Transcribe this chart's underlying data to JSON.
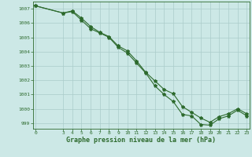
{
  "line1": {
    "x": [
      0,
      3,
      4,
      5,
      6,
      7,
      8,
      9,
      10,
      11,
      12,
      13,
      14,
      15,
      16,
      17,
      18,
      19,
      20,
      21,
      22,
      23
    ],
    "y": [
      1007.2,
      1006.7,
      1006.8,
      1006.2,
      1005.6,
      1005.3,
      1005.0,
      1004.3,
      1003.9,
      1003.2,
      1002.5,
      1001.6,
      1001.0,
      1000.5,
      999.6,
      999.5,
      998.9,
      998.85,
      999.3,
      999.5,
      999.9,
      999.5
    ]
  },
  "line2": {
    "x": [
      0,
      3,
      4,
      5,
      6,
      7,
      8,
      9,
      10,
      11,
      12,
      13,
      14,
      15,
      16,
      17,
      18,
      19,
      20,
      21,
      22,
      23
    ],
    "y": [
      1007.2,
      1006.7,
      1006.85,
      1006.35,
      1005.75,
      1005.35,
      1005.05,
      1004.4,
      1004.05,
      1003.35,
      1002.55,
      1001.95,
      1001.35,
      1001.05,
      1000.15,
      999.75,
      999.35,
      999.05,
      999.45,
      999.65,
      1000.0,
      999.65
    ]
  },
  "line_color": "#2d6a2d",
  "bg_color": "#cce8e6",
  "grid_color": "#aaccca",
  "xlabel": "Graphe pression niveau de la mer (hPa)",
  "ylim": [
    998.6,
    1007.5
  ],
  "xlim": [
    -0.3,
    23.3
  ],
  "yticks": [
    999,
    1000,
    1001,
    1002,
    1003,
    1004,
    1005,
    1006,
    1007
  ],
  "xticks": [
    0,
    3,
    4,
    5,
    6,
    7,
    8,
    9,
    10,
    11,
    12,
    13,
    14,
    15,
    16,
    17,
    18,
    19,
    20,
    21,
    22,
    23
  ],
  "marker": "*",
  "marker_size": 3.0,
  "line_width": 0.8
}
